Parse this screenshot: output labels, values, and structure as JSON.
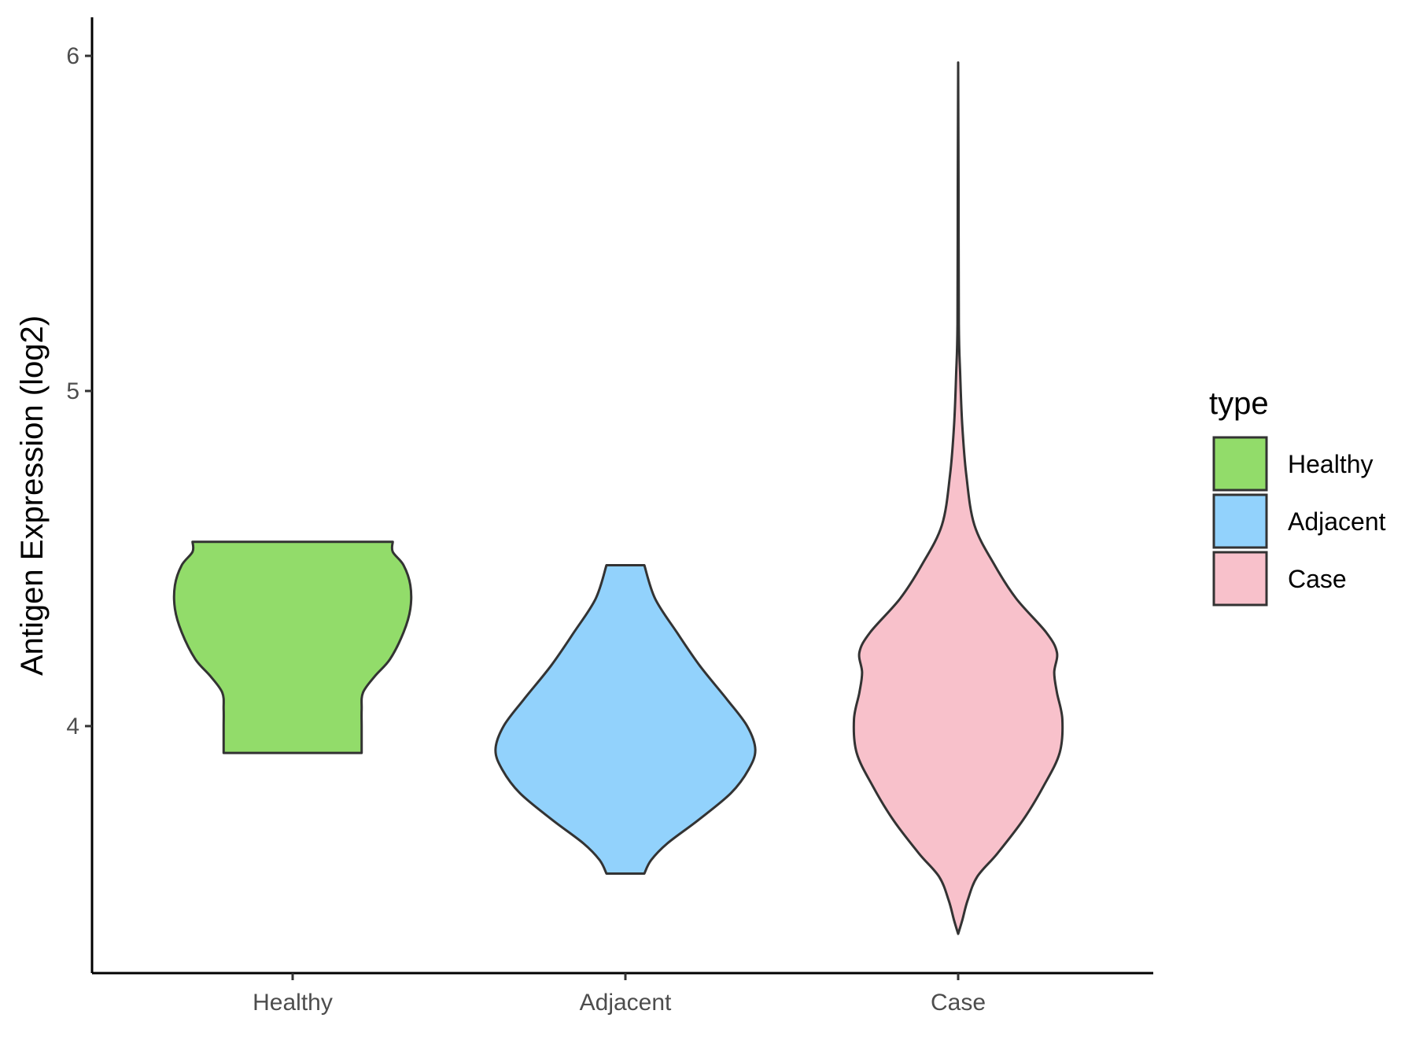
{
  "chart_data": {
    "type": "violin",
    "categories": [
      "Healthy",
      "Adjacent",
      "Case"
    ],
    "ylabel": "Antigen Expression (log2)",
    "xlabel": "",
    "ylim": [
      3.25,
      6.12
    ],
    "yticks": [
      4,
      5,
      6
    ],
    "grid": false,
    "legend": {
      "title": "type",
      "placement": "right",
      "entries": [
        "Healthy",
        "Adjacent",
        "Case"
      ]
    },
    "series": [
      {
        "name": "Healthy",
        "color": "#92dc6a",
        "min": 3.92,
        "max": 4.55,
        "density": [
          [
            3.92,
            0.51
          ],
          [
            3.96,
            0.51
          ],
          [
            4.0,
            0.51
          ],
          [
            4.05,
            0.51
          ],
          [
            4.1,
            0.52
          ],
          [
            4.15,
            0.61
          ],
          [
            4.2,
            0.72
          ],
          [
            4.28,
            0.82
          ],
          [
            4.35,
            0.87
          ],
          [
            4.42,
            0.87
          ],
          [
            4.48,
            0.82
          ],
          [
            4.52,
            0.74
          ],
          [
            4.55,
            0.74
          ]
        ]
      },
      {
        "name": "Adjacent",
        "color": "#92d2fc",
        "min": 3.56,
        "max": 4.48,
        "density": [
          [
            3.56,
            0.14
          ],
          [
            3.6,
            0.19
          ],
          [
            3.65,
            0.31
          ],
          [
            3.72,
            0.54
          ],
          [
            3.8,
            0.78
          ],
          [
            3.87,
            0.91
          ],
          [
            3.93,
            0.96
          ],
          [
            4.0,
            0.9
          ],
          [
            4.08,
            0.75
          ],
          [
            4.18,
            0.55
          ],
          [
            4.28,
            0.38
          ],
          [
            4.38,
            0.22
          ],
          [
            4.48,
            0.14
          ]
        ]
      },
      {
        "name": "Case",
        "color": "#f8c1cb",
        "min": 3.38,
        "max": 5.98,
        "density": [
          [
            3.38,
            0.0
          ],
          [
            3.42,
            0.03
          ],
          [
            3.48,
            0.07
          ],
          [
            3.55,
            0.14
          ],
          [
            3.62,
            0.29
          ],
          [
            3.72,
            0.48
          ],
          [
            3.82,
            0.63
          ],
          [
            3.92,
            0.75
          ],
          [
            4.02,
            0.77
          ],
          [
            4.1,
            0.73
          ],
          [
            4.16,
            0.71
          ],
          [
            4.22,
            0.73
          ],
          [
            4.28,
            0.65
          ],
          [
            4.38,
            0.43
          ],
          [
            4.48,
            0.27
          ],
          [
            4.6,
            0.12
          ],
          [
            4.75,
            0.06
          ],
          [
            4.9,
            0.03
          ],
          [
            5.05,
            0.015
          ],
          [
            5.2,
            0.005
          ],
          [
            5.6,
            0.003
          ],
          [
            5.98,
            0.0
          ]
        ]
      }
    ]
  }
}
